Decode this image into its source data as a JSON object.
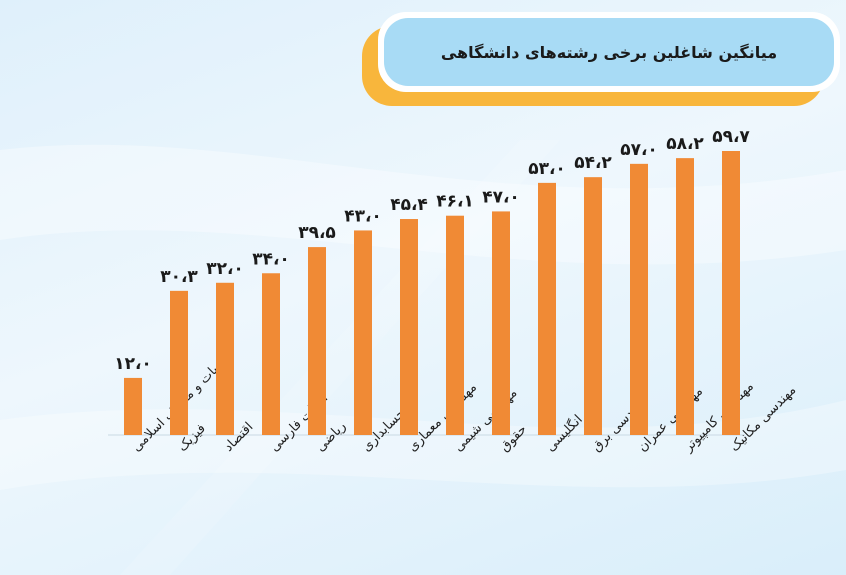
{
  "chart_data": {
    "type": "bar",
    "title": "میانگین شاغلین برخی رشته‌های دانشگاهی",
    "categories": [
      "الهیات و معارف اسلامی",
      "فیزیک",
      "اقتصاد",
      "ادبیات فارسی",
      "ریاضی",
      "حسابداری",
      "مهندسی معماری",
      "مهندسی شیمی",
      "حقوق",
      "زبان انگلیسی",
      "مهندسی برق",
      "مهندسی عمران",
      "مهندسی کامپیوتر",
      "مهندسی مکانیک"
    ],
    "values": [
      12.0,
      30.3,
      32.0,
      34.0,
      39.5,
      43.0,
      45.4,
      46.1,
      47.0,
      53.0,
      54.2,
      57.0,
      58.2,
      59.7
    ],
    "value_labels": [
      "۱۲،۰",
      "۳۰،۳",
      "۳۲،۰",
      "۳۴،۰",
      "۳۹،۵",
      "۴۳،۰",
      "۴۵،۴",
      "۴۶،۱",
      "۴۷،۰",
      "۵۳،۰",
      "۵۴،۲",
      "۵۷،۰",
      "۵۸،۲",
      "۵۹،۷"
    ],
    "xlabel": "",
    "ylabel": "",
    "ylim": [
      0,
      60
    ],
    "grid": false,
    "colors": {
      "bar": "#f08a35",
      "accent": "#f8b63c",
      "title_bg": "#a8dbf5"
    }
  }
}
